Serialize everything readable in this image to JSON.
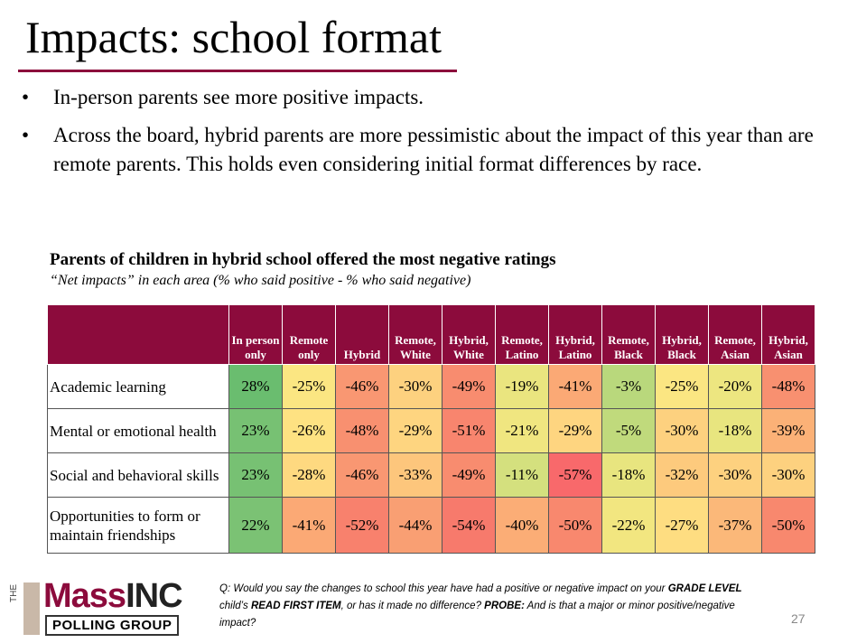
{
  "header": {
    "title": "Impacts: school format"
  },
  "bullets": [
    "In-person parents see more positive impacts.",
    "Across the board, hybrid parents are more pessimistic about the impact of this year than are remote parents. This holds even considering initial format differences by race."
  ],
  "table": {
    "title": "Parents of children in hybrid school offered the most negative ratings",
    "subtitle": "“Net impacts” in each area (% who said positive - % who said negative)",
    "header_color": "#8c0b3c",
    "columns": [
      "In person only",
      "Remote only",
      "Hybrid",
      "Remote, White",
      "Hybrid, White",
      "Remote, Latino",
      "Hybrid, Latino",
      "Remote, Black",
      "Hybrid, Black",
      "Remote, Asian",
      "Hybrid, Asian"
    ],
    "row_labels": [
      "Academic learning",
      "Mental or emotional health",
      "Social and behavioral skills",
      "Opportunities to form or maintain friendships"
    ],
    "rows": [
      [
        "28%",
        "-25%",
        "-46%",
        "-30%",
        "-49%",
        "-19%",
        "-41%",
        "-3%",
        "-25%",
        "-20%",
        "-48%"
      ],
      [
        "23%",
        "-26%",
        "-48%",
        "-29%",
        "-51%",
        "-21%",
        "-29%",
        "-5%",
        "-30%",
        "-18%",
        "-39%"
      ],
      [
        "23%",
        "-28%",
        "-46%",
        "-33%",
        "-49%",
        "-11%",
        "-57%",
        "-18%",
        "-32%",
        "-30%",
        "-30%"
      ],
      [
        "22%",
        "-41%",
        "-52%",
        "-44%",
        "-54%",
        "-40%",
        "-50%",
        "-22%",
        "-27%",
        "-37%",
        "-50%"
      ]
    ],
    "colors": [
      [
        "#6abd6f",
        "#fbe682",
        "#f99772",
        "#fdd17f",
        "#f88c6f",
        "#eae57f",
        "#fba975",
        "#b9d87c",
        "#fbe682",
        "#ede680",
        "#f89070"
      ],
      [
        "#77c173",
        "#fee282",
        "#f89070",
        "#fed580",
        "#f8856e",
        "#f0e680",
        "#fed580",
        "#c0da7c",
        "#fdd17f",
        "#e8e57f",
        "#fbb177"
      ],
      [
        "#77c173",
        "#fed980",
        "#f99772",
        "#fdc67c",
        "#f88c6f",
        "#d4e07e",
        "#f8696b",
        "#e8e57f",
        "#fdca7d",
        "#fdd17f",
        "#fdd17f"
      ],
      [
        "#7bc274",
        "#fba975",
        "#f8816d",
        "#f99f73",
        "#f77a6c",
        "#fbad76",
        "#f8886e",
        "#f2e680",
        "#fedd81",
        "#fbb879",
        "#f8886e"
      ]
    ]
  },
  "footer": {
    "logo": {
      "the": "THE",
      "mass": "Mass",
      "inc": "INC",
      "tagline": "POLLING GROUP"
    },
    "question": [
      {
        "text": "Q: Would you say the changes to school this year have had a positive or negative impact on your "
      },
      {
        "text": "GRADE LEVEL",
        "bold": true
      },
      {
        "text": " child’s "
      },
      {
        "text": "READ FIRST ITEM",
        "bold": true
      },
      {
        "text": ", or has it made no difference? "
      },
      {
        "text": "PROBE:",
        "bold": true
      },
      {
        "text": " And is that a major or minor positive/negative impact?"
      }
    ],
    "page_number": "27"
  }
}
